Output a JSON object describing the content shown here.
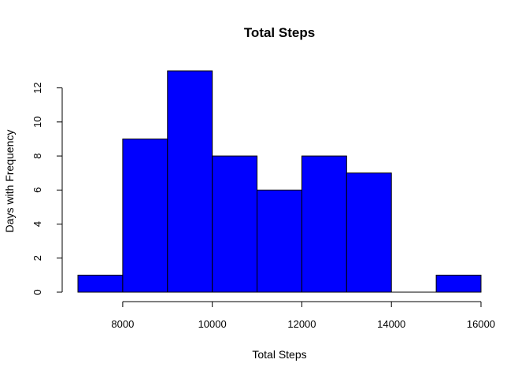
{
  "chart_data": {
    "type": "bar",
    "title": "Total Steps",
    "xlabel": "Total Steps",
    "ylabel": "Days with Frequency",
    "bin_edges": [
      7000,
      8000,
      9000,
      10000,
      11000,
      12000,
      13000,
      14000,
      15000,
      16000
    ],
    "values": [
      1,
      9,
      13,
      8,
      6,
      8,
      7,
      0,
      1
    ],
    "xlim": [
      7000,
      16000
    ],
    "ylim": [
      0,
      13
    ],
    "x_ticks": [
      8000,
      10000,
      12000,
      14000,
      16000
    ],
    "y_ticks": [
      0,
      2,
      4,
      6,
      8,
      10,
      12
    ],
    "grid": false,
    "legend": "none",
    "colors": {
      "bar_fill": "#0000ff",
      "bar_stroke": "#000000"
    }
  }
}
